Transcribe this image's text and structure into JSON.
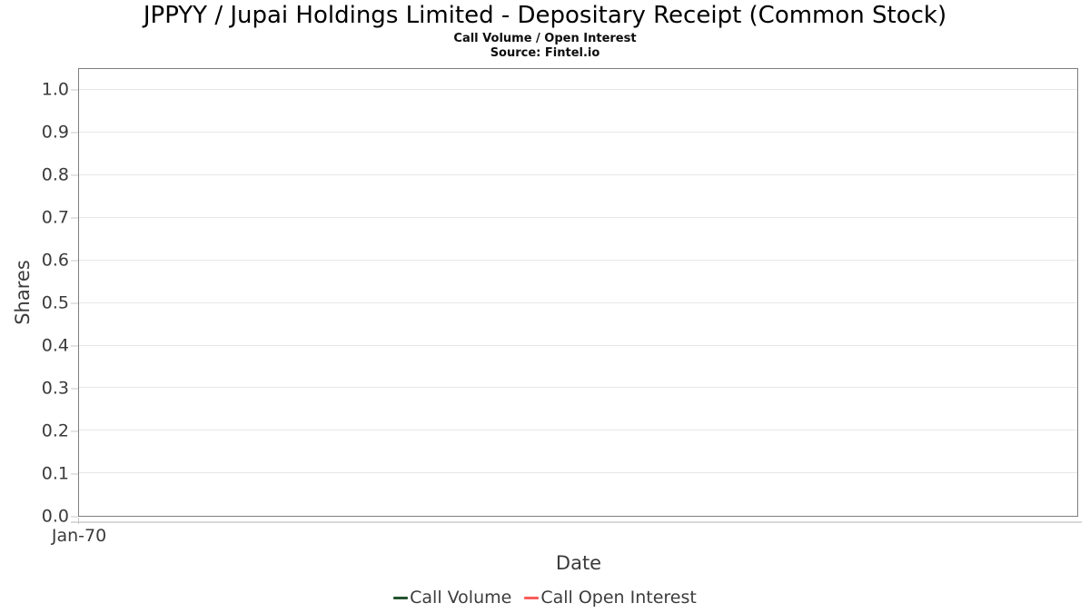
{
  "header": {
    "title": "JPPYY / Jupai Holdings Limited - Depositary Receipt (Common Stock)",
    "subtitle": "Call Volume / Open Interest",
    "source": "Source: Fintel.io"
  },
  "chart_data": {
    "type": "line",
    "title": "JPPYY / Jupai Holdings Limited - Depositary Receipt (Common Stock)",
    "subtitle": "Call Volume / Open Interest",
    "source_note": "Source: Fintel.io",
    "xlabel": "Date",
    "ylabel": "Shares",
    "ylim": [
      0,
      1.05
    ],
    "y_ticks": [
      "0.0",
      "0.1",
      "0.2",
      "0.3",
      "0.4",
      "0.5",
      "0.6",
      "0.7",
      "0.8",
      "0.9",
      "1.0"
    ],
    "x_ticks": [
      "Jan-70"
    ],
    "grid": true,
    "legend_position": "bottom",
    "plot_border_color": "#7d7d7d",
    "gridline_color": "#e7e7e7",
    "series": [
      {
        "name": "Call Volume",
        "color": "#24532f",
        "x": [],
        "values": []
      },
      {
        "name": "Call Open Interest",
        "color": "#fa5c5c",
        "x": [],
        "values": []
      }
    ]
  }
}
